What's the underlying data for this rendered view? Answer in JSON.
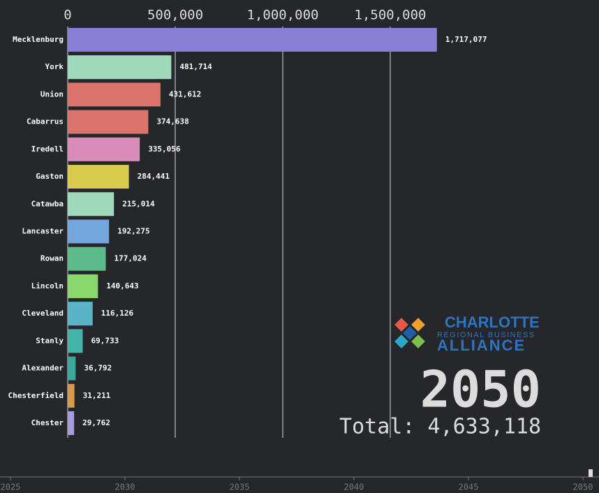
{
  "chart_data": {
    "type": "hbar",
    "year": "2050",
    "total_label": "Total: 4,633,118",
    "categories": [
      "Mecklenburg",
      "York",
      "Union",
      "Cabarrus",
      "Iredell",
      "Gaston",
      "Catawba",
      "Lancaster",
      "Rowan",
      "Lincoln",
      "Cleveland",
      "Stanly",
      "Alexander",
      "Chesterfield",
      "Chester"
    ],
    "values": [
      1717077,
      481714,
      431612,
      374638,
      335056,
      284441,
      215014,
      192275,
      177024,
      140643,
      116126,
      69733,
      36792,
      31211,
      29762
    ],
    "value_labels": [
      "1,717,077",
      "481,714",
      "431,612",
      "374,638",
      "335,056",
      "284,441",
      "215,014",
      "192,275",
      "177,024",
      "140,643",
      "116,126",
      "69,733",
      "36,792",
      "31,211",
      "29,762"
    ],
    "colors": [
      "#8a80d8",
      "#a0d8bc",
      "#d9736b",
      "#d9736b",
      "#d98cba",
      "#d8cb4e",
      "#a0d8bc",
      "#72a6dc",
      "#5dba8a",
      "#8ad86c",
      "#5ab4c6",
      "#44b4a8",
      "#3ca89c",
      "#d99a4e",
      "#a89bdb"
    ],
    "xlim": [
      0,
      1750000
    ],
    "xticks": [
      0,
      {
        "value": 500000,
        "label": "500,000"
      },
      {
        "value": 1000000,
        "label": "1,000,000"
      },
      {
        "value": 1500000,
        "label": "1,500,000"
      }
    ],
    "grid": true
  },
  "logo": [
    "CHARLOTTE",
    "REGIONAL BUSINESS",
    "ALLIANCE"
  ],
  "timeline": {
    "xlim": [
      2025,
      2050
    ],
    "ticks": [
      2025,
      2030,
      2035,
      2040,
      2045,
      2050
    ],
    "current": 2050
  }
}
